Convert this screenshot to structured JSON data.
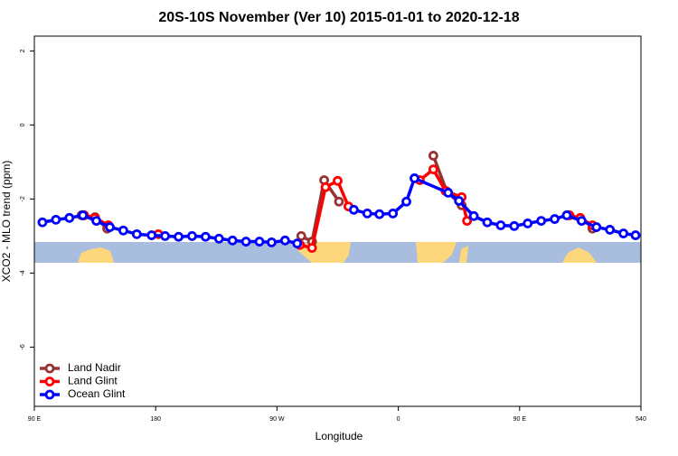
{
  "chart_data": {
    "type": "line",
    "title": "20S-10S November (Ver 10)   2015-01-01 to 2020-12-18",
    "x_label": "Longitude",
    "y_label": "XCO2 - MLO trend (ppm)",
    "xlim": [
      90,
      540
    ],
    "xticks": [
      {
        "value": 90,
        "label": "90 E"
      },
      180,
      {
        "value": 270,
        "label": "90 W"
      },
      {
        "value": 360,
        "label": "0"
      },
      {
        "value": 450,
        "label": "90 E"
      },
      540
    ],
    "ylim": [
      -7.6,
      2.4
    ],
    "yticks": [
      2,
      0,
      -2,
      -4,
      -6
    ],
    "legend": "bottom-left",
    "series": [
      {
        "name": "Land Nadir",
        "color": "#993333",
        "x": [
          125,
          135,
          144,
          null,
          288,
          296,
          305,
          316,
          null,
          386,
          396,
          407,
          null,
          504
        ],
        "values": [
          -2.44,
          -2.49,
          -2.8,
          null,
          -3.0,
          -3.15,
          -1.49,
          -2.07,
          null,
          -0.83,
          -1.8,
          -2.17,
          null,
          -2.8
        ]
      },
      {
        "name": "Land Glint",
        "color": "#ff0000",
        "x": [
          127,
          135,
          145,
          null,
          182,
          null,
          287,
          296,
          306,
          315,
          323,
          null,
          376,
          386,
          395,
          407,
          411,
          null,
          487,
          495,
          504
        ],
        "values": [
          -2.44,
          -2.51,
          -2.71,
          null,
          -2.95,
          null,
          -3.24,
          -3.32,
          -1.68,
          -1.51,
          -2.2,
          null,
          -1.49,
          -1.2,
          -1.78,
          -1.95,
          -2.59,
          null,
          -2.44,
          -2.51,
          -2.71
        ]
      },
      {
        "name": "Ocean Glint",
        "color": "#0000ff",
        "x": [
          96,
          106,
          116,
          126,
          136,
          146,
          156,
          166,
          177,
          187,
          197,
          207,
          217,
          227,
          237,
          247,
          257,
          266,
          276,
          285,
          null,
          327,
          337,
          346,
          356,
          366,
          372,
          397,
          405,
          416,
          426,
          436,
          446,
          456,
          466,
          476,
          485,
          496,
          507,
          517,
          527,
          536
        ],
        "values": [
          -2.63,
          -2.56,
          -2.51,
          -2.44,
          -2.59,
          -2.76,
          -2.85,
          -2.95,
          -2.98,
          -3.0,
          -3.02,
          -3.0,
          -3.02,
          -3.07,
          -3.12,
          -3.15,
          -3.15,
          -3.17,
          -3.12,
          -3.2,
          null,
          -2.29,
          -2.39,
          -2.41,
          -2.39,
          -2.07,
          -1.44,
          -1.83,
          -2.05,
          -2.46,
          -2.63,
          -2.71,
          -2.73,
          -2.66,
          -2.59,
          -2.54,
          -2.44,
          -2.59,
          -2.76,
          -2.83,
          -2.93,
          -2.98
        ]
      }
    ]
  }
}
